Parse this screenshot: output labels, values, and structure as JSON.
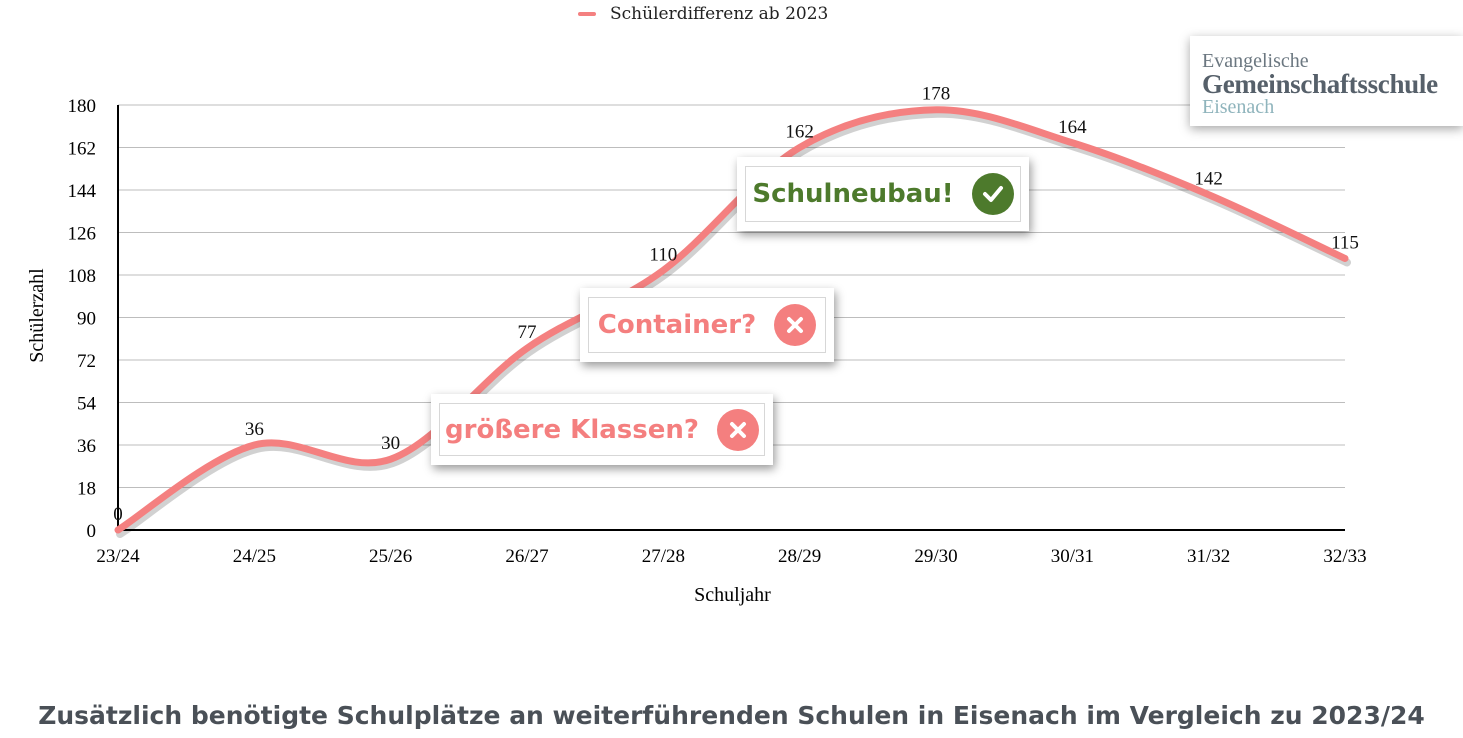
{
  "legend": {
    "label": "Schülerdifferenz ab 2023",
    "color": "#f48080"
  },
  "logo": {
    "line1": "Evangelische",
    "line2": "Gemeinschaftsschule",
    "line3": "Eisenach"
  },
  "callouts": [
    {
      "text": "größere Klassen?",
      "icon": "x-circle-icon",
      "color": "#f47f7f"
    },
    {
      "text": "Container?",
      "icon": "x-circle-icon",
      "color": "#f47f7f"
    },
    {
      "text": "Schulneubau!",
      "icon": "check-circle-icon",
      "color": "#4d7a2c"
    }
  ],
  "caption": "Zusätzlich benötigte Schulplätze an weiterführenden Schulen in Eisenach im Vergleich zu 2023/24",
  "chart_data": {
    "type": "line",
    "categories": [
      "23/24",
      "24/25",
      "25/26",
      "26/27",
      "27/28",
      "28/29",
      "29/30",
      "30/31",
      "31/32",
      "32/33"
    ],
    "series": [
      {
        "name": "Schülerdifferenz ab 2023",
        "values": [
          0,
          36,
          30,
          77,
          110,
          162,
          178,
          164,
          142,
          115
        ],
        "color": "#f48080"
      }
    ],
    "data_labels": [
      "0",
      "36",
      "30",
      "77",
      "110",
      "162",
      "178",
      "164",
      "142",
      "115"
    ],
    "xlabel": "Schuljahr",
    "ylabel": "Schülerzahl",
    "ylim": [
      0,
      180
    ],
    "yticks": [
      "0",
      "18",
      "36",
      "54",
      "72",
      "90",
      "108",
      "126",
      "144",
      "162",
      "180"
    ],
    "grid": true,
    "legend_position": "top-center"
  }
}
